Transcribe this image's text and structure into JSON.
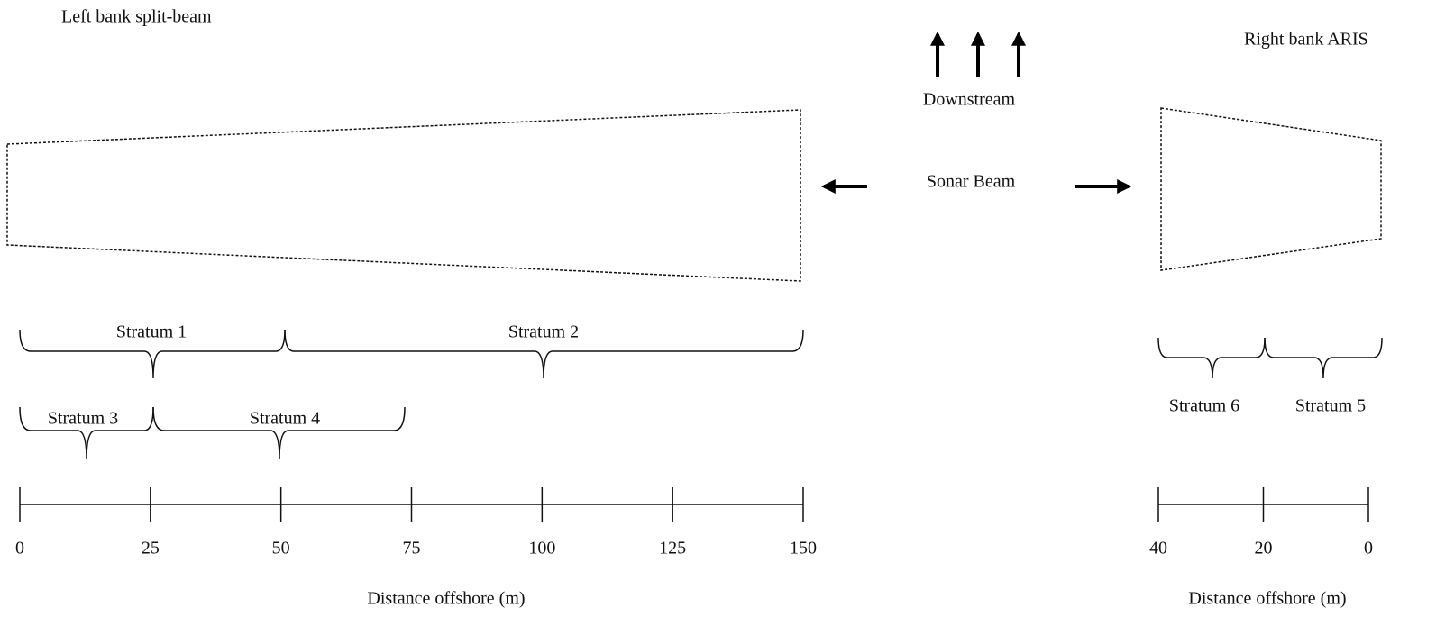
{
  "left_bank": {
    "title": "Left bank split-beam",
    "strata": [
      "Stratum 1",
      "Stratum 2",
      "Stratum 3",
      "Stratum 4"
    ],
    "scale": {
      "ticks": [
        0,
        25,
        50,
        75,
        100,
        125,
        150
      ],
      "label": "Distance offshore (m)"
    }
  },
  "right_bank": {
    "title": "Right bank ARIS",
    "strata": [
      "Stratum 6",
      "Stratum 5"
    ],
    "scale": {
      "ticks": [
        40,
        20,
        0
      ],
      "label": "Distance offshore (m)"
    }
  },
  "flow_label": "Downstream",
  "beam_label": "Sonar Beam"
}
